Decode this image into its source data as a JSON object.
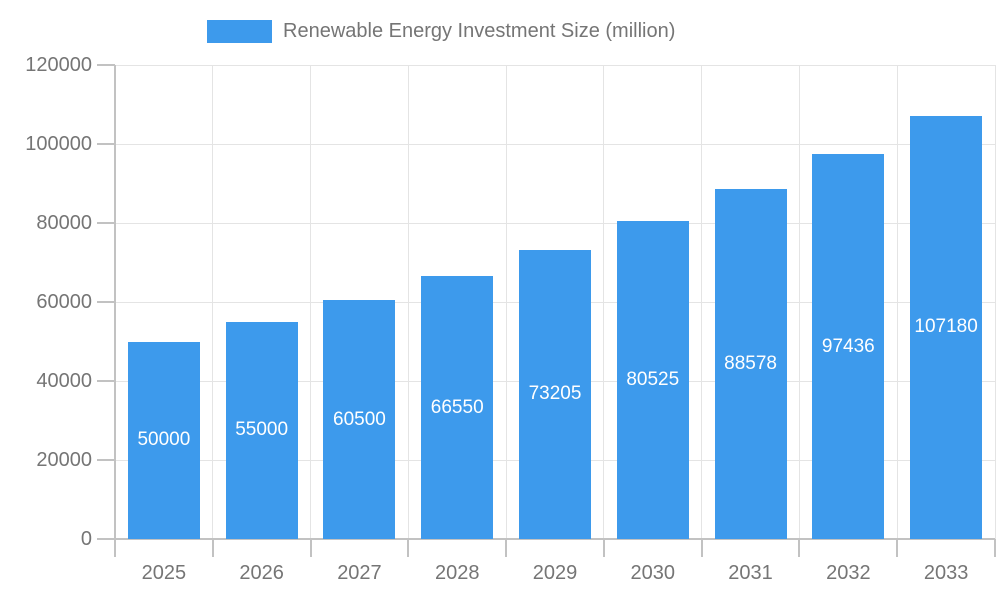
{
  "legend": {
    "label": "Renewable Energy Investment Size (million)"
  },
  "chart_data": {
    "type": "bar",
    "title": "Renewable Energy Investment Size (million)",
    "categories": [
      "2025",
      "2026",
      "2027",
      "2028",
      "2029",
      "2030",
      "2031",
      "2032",
      "2033"
    ],
    "values": [
      50000,
      55000,
      60500,
      66550,
      73205,
      80525,
      88578,
      97436,
      107180
    ],
    "value_labels": [
      "50000",
      "55000",
      "60500",
      "66550",
      "73205",
      "80525",
      "88578",
      "97436",
      "107180"
    ],
    "xlabel": "",
    "ylabel": "",
    "ylim": [
      0,
      120000
    ],
    "ytick_step": 20000,
    "ytick_labels": [
      "0",
      "20000",
      "40000",
      "60000",
      "80000",
      "100000",
      "120000"
    ],
    "grid": true,
    "legend_position": "top",
    "bar_color": "#3d9aec",
    "value_label_color": "#ffffff",
    "grid_color": "#e4e4e4",
    "axis_color": "#c2c2c2",
    "text_color": "#757575",
    "background_color": "#ffffff"
  }
}
